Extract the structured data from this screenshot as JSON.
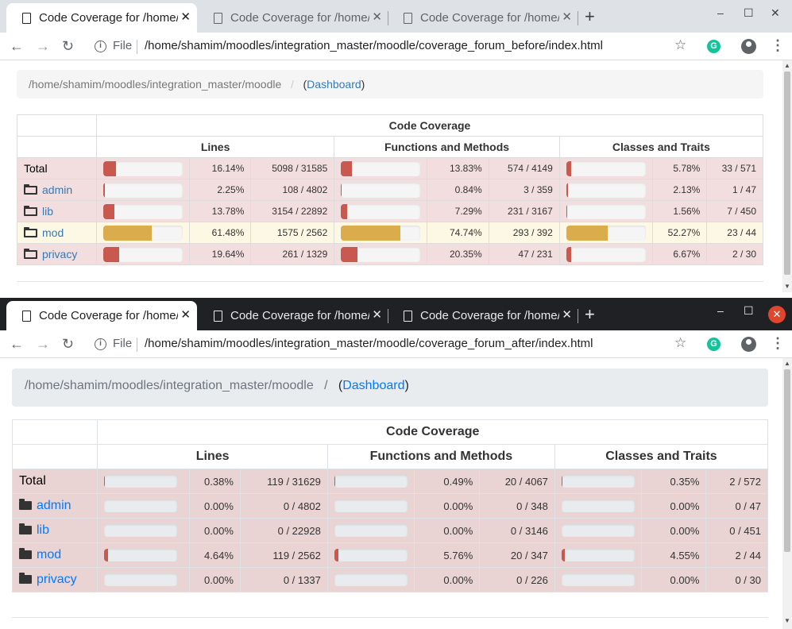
{
  "colors": {
    "danger": "#c9594f",
    "warning": "#dbac4c"
  },
  "windows": [
    {
      "tabs": [
        "Code Coverage for /home/shamim/moodles/integration_master/moodle",
        "Code Coverage for /home/shamim/moodles/integration_master/moodle",
        "Code Coverage for /home/shamim/moodles/integration_master/moodle"
      ],
      "file_label": "File",
      "url": "/home/shamim/moodles/integration_master/moodle/coverage_forum_before/index.html",
      "breadcrumb": {
        "path": "/home/shamim/moodles/integration_master/moodle",
        "sep": "/",
        "open": "(",
        "link": "Dashboard",
        "close": ")"
      },
      "table": {
        "title": "Code Coverage",
        "groups": [
          "Lines",
          "Functions and Methods",
          "Classes and Traits"
        ],
        "rows": [
          {
            "name": "Total",
            "folder": false,
            "level": "low",
            "lines_pct": "16.14%",
            "lines": "5098 / 31585",
            "lines_v": 16.14,
            "funcs_pct": "13.83%",
            "funcs": "574 / 4149",
            "funcs_v": 13.83,
            "classes_pct": "5.78%",
            "classes": "33 / 571",
            "classes_v": 5.78
          },
          {
            "name": "admin",
            "folder": true,
            "level": "low",
            "lines_pct": "2.25%",
            "lines": "108 / 4802",
            "lines_v": 2.25,
            "funcs_pct": "0.84%",
            "funcs": "3 / 359",
            "funcs_v": 0.84,
            "classes_pct": "2.13%",
            "classes": "1 / 47",
            "classes_v": 2.13
          },
          {
            "name": "lib",
            "folder": true,
            "level": "low",
            "lines_pct": "13.78%",
            "lines": "3154 / 22892",
            "lines_v": 13.78,
            "funcs_pct": "7.29%",
            "funcs": "231 / 3167",
            "funcs_v": 7.29,
            "classes_pct": "1.56%",
            "classes": "7 / 450",
            "classes_v": 1.56
          },
          {
            "name": "mod",
            "folder": true,
            "level": "mid",
            "lines_pct": "61.48%",
            "lines": "1575 / 2562",
            "lines_v": 61.48,
            "funcs_pct": "74.74%",
            "funcs": "293 / 392",
            "funcs_v": 74.74,
            "classes_pct": "52.27%",
            "classes": "23 / 44",
            "classes_v": 52.27
          },
          {
            "name": "privacy",
            "folder": true,
            "level": "low",
            "lines_pct": "19.64%",
            "lines": "261 / 1329",
            "lines_v": 19.64,
            "funcs_pct": "20.35%",
            "funcs": "47 / 231",
            "funcs_v": 20.35,
            "classes_pct": "6.67%",
            "classes": "2 / 30",
            "classes_v": 6.67
          }
        ]
      }
    },
    {
      "tabs": [
        "Code Coverage for /home/shamim/moodles/integration_master/moodle",
        "Code Coverage for /home/shamim/moodles/integration_master/moodle",
        "Code Coverage for /home/shamim/moodles/integration_master/moodle"
      ],
      "file_label": "File",
      "url": "/home/shamim/moodles/integration_master/moodle/coverage_forum_after/index.html",
      "breadcrumb": {
        "path": "/home/shamim/moodles/integration_master/moodle",
        "sep": "/",
        "open": "(",
        "link": "Dashboard",
        "close": ")"
      },
      "table": {
        "title": "Code Coverage",
        "groups": [
          "Lines",
          "Functions and Methods",
          "Classes and Traits"
        ],
        "rows": [
          {
            "name": "Total",
            "folder": false,
            "level": "low",
            "lines_pct": "0.38%",
            "lines": "119 / 31629",
            "lines_v": 0.38,
            "funcs_pct": "0.49%",
            "funcs": "20 / 4067",
            "funcs_v": 0.49,
            "classes_pct": "0.35%",
            "classes": "2 / 572",
            "classes_v": 0.35
          },
          {
            "name": "admin",
            "folder": true,
            "level": "low",
            "lines_pct": "0.00%",
            "lines": "0 / 4802",
            "lines_v": 0,
            "funcs_pct": "0.00%",
            "funcs": "0 / 348",
            "funcs_v": 0,
            "classes_pct": "0.00%",
            "classes": "0 / 47",
            "classes_v": 0
          },
          {
            "name": "lib",
            "folder": true,
            "level": "low",
            "lines_pct": "0.00%",
            "lines": "0 / 22928",
            "lines_v": 0,
            "funcs_pct": "0.00%",
            "funcs": "0 / 3146",
            "funcs_v": 0,
            "classes_pct": "0.00%",
            "classes": "0 / 451",
            "classes_v": 0
          },
          {
            "name": "mod",
            "folder": true,
            "level": "low",
            "lines_pct": "4.64%",
            "lines": "119 / 2562",
            "lines_v": 4.64,
            "funcs_pct": "5.76%",
            "funcs": "20 / 347",
            "funcs_v": 5.76,
            "classes_pct": "4.55%",
            "classes": "2 / 44",
            "classes_v": 4.55
          },
          {
            "name": "privacy",
            "folder": true,
            "level": "low",
            "lines_pct": "0.00%",
            "lines": "0 / 1337",
            "lines_v": 0,
            "funcs_pct": "0.00%",
            "funcs": "0 / 226",
            "funcs_v": 0,
            "classes_pct": "0.00%",
            "classes": "0 / 30",
            "classes_v": 0
          }
        ]
      }
    }
  ]
}
